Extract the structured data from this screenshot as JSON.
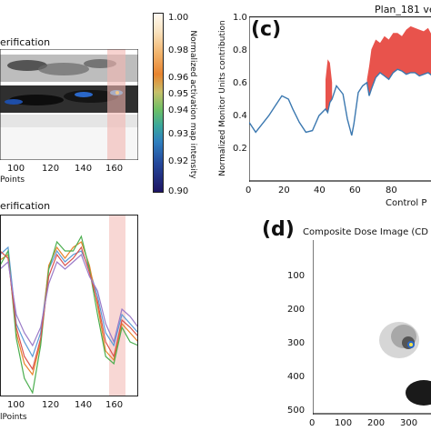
{
  "panel_a_title": "erification",
  "panel_b_title": "erification",
  "panel_c_label": "(c)",
  "panel_c_title": "Plan_181 ve",
  "panel_d_label": "(d)",
  "panel_d_title": "Composite Dose Image (CD",
  "colorbar": {
    "label": "Normalized activation map intensity",
    "ticks": [
      "1.00",
      "0.98",
      "0.96",
      "0.95",
      "0.94",
      "0.93",
      "0.92",
      "0.90"
    ]
  },
  "chart_data": [
    {
      "type": "heatmap",
      "panel": "a",
      "title": "erification",
      "xlabel": "Points",
      "xticks": [
        "100",
        "120",
        "140",
        "160"
      ],
      "highlight_x": [
        158,
        170
      ],
      "xlim": [
        93,
        175
      ]
    },
    {
      "type": "line",
      "panel": "b",
      "title": "erification",
      "xlabel": "lPoints",
      "xticks": [
        "100",
        "120",
        "140",
        "160"
      ],
      "xlim": [
        90,
        175
      ],
      "highlight_x": [
        158,
        168
      ],
      "series": [
        {
          "color": "#5b9bd5",
          "x": [
            90,
            95,
            100,
            105,
            110,
            115,
            120,
            125,
            130,
            135,
            140,
            145,
            150,
            155,
            160,
            165,
            170,
            175
          ],
          "y": [
            0.78,
            0.82,
            0.4,
            0.3,
            0.22,
            0.35,
            0.7,
            0.8,
            0.74,
            0.78,
            0.8,
            0.7,
            0.55,
            0.35,
            0.28,
            0.45,
            0.4,
            0.35
          ]
        },
        {
          "color": "#e8832a",
          "x": [
            90,
            95,
            100,
            105,
            110,
            115,
            120,
            125,
            130,
            135,
            140,
            145,
            150,
            155,
            160,
            165,
            170,
            175
          ],
          "y": [
            0.75,
            0.78,
            0.35,
            0.18,
            0.12,
            0.3,
            0.72,
            0.82,
            0.76,
            0.82,
            0.85,
            0.72,
            0.5,
            0.25,
            0.2,
            0.4,
            0.35,
            0.3
          ]
        },
        {
          "color": "#4caf50",
          "x": [
            90,
            95,
            100,
            105,
            110,
            115,
            120,
            125,
            130,
            135,
            140,
            145,
            150,
            155,
            160,
            165,
            170,
            175
          ],
          "y": [
            0.72,
            0.8,
            0.32,
            0.1,
            0.02,
            0.28,
            0.7,
            0.85,
            0.8,
            0.8,
            0.88,
            0.7,
            0.45,
            0.22,
            0.18,
            0.38,
            0.3,
            0.28
          ]
        },
        {
          "color": "#d9534f",
          "x": [
            90,
            95,
            100,
            105,
            110,
            115,
            120,
            125,
            130,
            135,
            140,
            145,
            150,
            155,
            160,
            165,
            170,
            175
          ],
          "y": [
            0.8,
            0.76,
            0.38,
            0.22,
            0.15,
            0.32,
            0.66,
            0.78,
            0.72,
            0.76,
            0.82,
            0.68,
            0.52,
            0.3,
            0.22,
            0.42,
            0.38,
            0.33
          ]
        },
        {
          "color": "#9b7bc8",
          "x": [
            90,
            95,
            100,
            105,
            110,
            115,
            120,
            125,
            130,
            135,
            140,
            145,
            150,
            155,
            160,
            165,
            170,
            175
          ],
          "y": [
            0.7,
            0.74,
            0.45,
            0.35,
            0.28,
            0.38,
            0.62,
            0.74,
            0.7,
            0.74,
            0.78,
            0.66,
            0.58,
            0.4,
            0.3,
            0.48,
            0.44,
            0.38
          ]
        }
      ]
    },
    {
      "type": "line",
      "panel": "c",
      "title": "Plan_181 ve",
      "xlabel": "Control P",
      "ylabel": "Normalized Monitor Units contribution",
      "xlim": [
        0,
        100
      ],
      "ylim": [
        0,
        1.0
      ],
      "yticks": [
        "0.2",
        "0.4",
        "0.6",
        "0.8",
        "1.0"
      ],
      "xticks": [
        "0",
        "20",
        "40",
        "60",
        "80"
      ],
      "series": [
        {
          "name": "",
          "color": "#3b78b0",
          "x": [
            0,
            3,
            6,
            9,
            12,
            15,
            18,
            20,
            23,
            26,
            29,
            32,
            35,
            36,
            37,
            38,
            40,
            43,
            45,
            47,
            48,
            50,
            52,
            54,
            55,
            56,
            58,
            60,
            62,
            64,
            66,
            68,
            70,
            72,
            74,
            76,
            78,
            80,
            82,
            84,
            86,
            88,
            90,
            92,
            94,
            96,
            98,
            100
          ],
          "y": [
            0.36,
            0.3,
            0.35,
            0.4,
            0.46,
            0.52,
            0.5,
            0.44,
            0.36,
            0.3,
            0.31,
            0.4,
            0.44,
            0.42,
            0.48,
            0.5,
            0.58,
            0.53,
            0.38,
            0.28,
            0.35,
            0.54,
            0.58,
            0.6,
            0.52,
            0.56,
            0.63,
            0.66,
            0.64,
            0.62,
            0.66,
            0.68,
            0.67,
            0.65,
            0.66,
            0.66,
            0.64,
            0.65,
            0.66,
            0.64,
            0.62,
            0.63,
            0.64,
            0.62,
            0.63,
            0.64,
            0.62,
            0.6
          ]
        }
      ],
      "fill_over": [
        {
          "color": "#e8534c",
          "x": [
            35,
            36,
            37,
            38
          ],
          "upper": [
            0.62,
            0.74,
            0.72,
            0.6
          ],
          "lower": [
            0.44,
            0.42,
            0.48,
            0.5
          ]
        },
        {
          "color": "#e8534c",
          "x": [
            54,
            55,
            56,
            58,
            60,
            62,
            64,
            66,
            68,
            70,
            72,
            74,
            76,
            78,
            80,
            82,
            84,
            86,
            88,
            90,
            92,
            94,
            96,
            98,
            100
          ],
          "upper": [
            0.62,
            0.7,
            0.8,
            0.86,
            0.84,
            0.88,
            0.86,
            0.9,
            0.9,
            0.88,
            0.92,
            0.94,
            0.93,
            0.92,
            0.91,
            0.93,
            0.88,
            0.86,
            0.84,
            0.82,
            0.84,
            0.8,
            0.78,
            0.8,
            0.74
          ],
          "lower": [
            0.6,
            0.52,
            0.56,
            0.63,
            0.66,
            0.64,
            0.62,
            0.66,
            0.68,
            0.67,
            0.65,
            0.66,
            0.66,
            0.64,
            0.65,
            0.66,
            0.64,
            0.62,
            0.63,
            0.64,
            0.62,
            0.63,
            0.64,
            0.62,
            0.6
          ]
        }
      ]
    },
    {
      "type": "heatmap",
      "panel": "d",
      "title": "Composite Dose Image (CD",
      "yticks": [
        "100",
        "200",
        "300",
        "400",
        "500"
      ],
      "xticks": [
        "0",
        "100",
        "200",
        "300"
      ],
      "xlim": [
        0,
        350
      ],
      "ylim": [
        0,
        500
      ]
    }
  ]
}
